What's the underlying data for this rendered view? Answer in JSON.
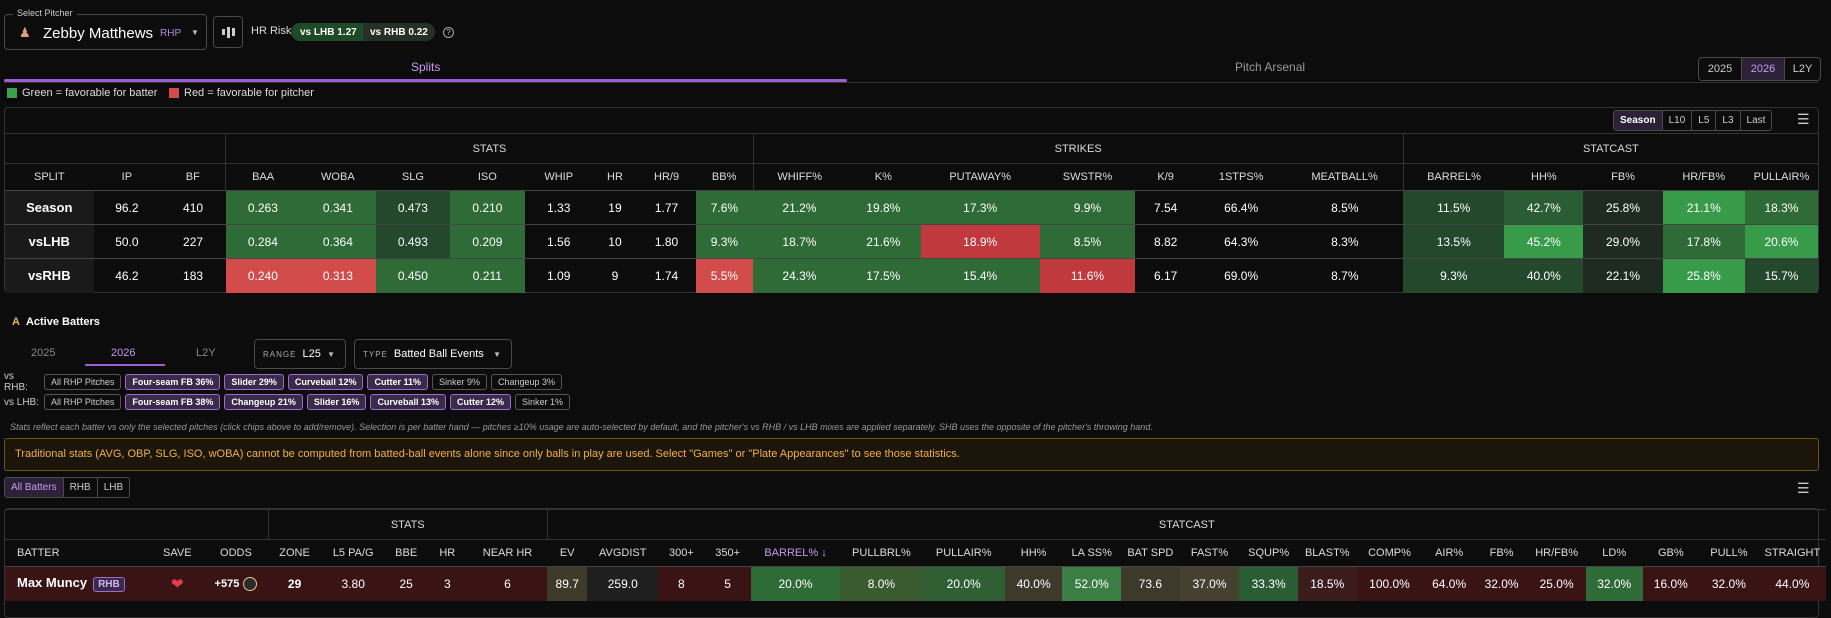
{
  "pitcher": {
    "select_label": "Select Pitcher",
    "name": "Zebby Matthews",
    "hand": "RHP"
  },
  "hr_risk": {
    "label": "HR Risk",
    "vs_lhb_label": "vs LHB",
    "vs_lhb_val": "1.27",
    "vs_rhb_label": "vs RHB",
    "vs_rhb_val": "0.22"
  },
  "tabs": {
    "splits": "Splits",
    "arsenal": "Pitch Arsenal"
  },
  "years": [
    "2025",
    "2026",
    "L2Y"
  ],
  "legend": {
    "green": "Green = favorable for batter",
    "red": "Red = favorable for pitcher"
  },
  "ranges": [
    "Season",
    "L10",
    "L5",
    "L3",
    "Last"
  ],
  "splits_table": {
    "groups": [
      "STATS",
      "STRIKES",
      "STATCAST"
    ],
    "headers": [
      "SPLIT",
      "IP",
      "BF",
      "BAA",
      "WOBA",
      "SLG",
      "ISO",
      "WHIP",
      "HR",
      "HR/9",
      "BB%",
      "WHIFF%",
      "K%",
      "PUTAWAY%",
      "SWSTR%",
      "K/9",
      "1STPS%",
      "MEATBALL%",
      "BARREL%",
      "HH%",
      "FB%",
      "HR/FB%",
      "PULLAIR%"
    ],
    "rows": [
      [
        "Season",
        "96.2",
        "410",
        "0.263",
        "0.341",
        "0.473",
        "0.210",
        "1.33",
        "19",
        "1.77",
        "7.6%",
        "21.2%",
        "19.8%",
        "17.3%",
        "9.9%",
        "7.54",
        "66.4%",
        "8.5%",
        "11.5%",
        "42.7%",
        "25.8%",
        "21.1%",
        "18.3%"
      ],
      [
        "vsLHB",
        "50.0",
        "227",
        "0.284",
        "0.364",
        "0.493",
        "0.209",
        "1.56",
        "10",
        "1.80",
        "9.3%",
        "18.7%",
        "21.6%",
        "18.9%",
        "8.5%",
        "8.82",
        "64.3%",
        "8.3%",
        "13.5%",
        "45.2%",
        "29.0%",
        "17.8%",
        "20.6%"
      ],
      [
        "vsRHB",
        "46.2",
        "183",
        "0.240",
        "0.313",
        "0.450",
        "0.211",
        "1.09",
        "9",
        "1.74",
        "5.5%",
        "24.3%",
        "17.5%",
        "15.4%",
        "11.6%",
        "6.17",
        "69.0%",
        "8.7%",
        "9.3%",
        "40.0%",
        "22.1%",
        "25.8%",
        "15.7%"
      ]
    ]
  },
  "active_batters": {
    "title": "Active Batters",
    "years": [
      "2025",
      "2026",
      "L2Y"
    ],
    "range_label": "RANGE",
    "range_value": "L25",
    "type_label": "TYPE",
    "type_value": "Batted Ball Events"
  },
  "vs_rhb": {
    "label": "vs RHB:",
    "chips": [
      "All RHP Pitches",
      "Four-seam FB 36%",
      "Slider 29%",
      "Curveball 12%",
      "Cutter 11%",
      "Sinker 9%",
      "Changeup 3%"
    ]
  },
  "vs_lhb": {
    "label": "vs LHB:",
    "chips": [
      "All RHP Pitches",
      "Four-seam FB 38%",
      "Changeup 21%",
      "Slider 16%",
      "Curveball 13%",
      "Cutter 12%",
      "Sinker 1%"
    ]
  },
  "note": "Stats reflect each batter vs only the selected pitches (click chips above to add/remove). Selection is per batter hand — pitches ≥10% usage are auto-selected by default, and the pitcher's vs RHB / vs LHB mixes are applied separately. SHB uses the opposite of the pitcher's throwing hand.",
  "warning": "Traditional stats (AVG, OBP, SLG, ISO, wOBA) cannot be computed from batted-ball events alone since only balls in play are used. Select \"Games\" or \"Plate Appearances\" to see those statistics.",
  "batter_filters": [
    "All Batters",
    "RHB",
    "LHB"
  ],
  "batter_table": {
    "groups": [
      "STATS",
      "STATCAST"
    ],
    "headers": [
      "BATTER",
      "SAVE",
      "ODDS",
      "ZONE",
      "L5 PA/G",
      "BBE",
      "HR",
      "NEAR HR",
      "EV",
      "AVGDIST",
      "300+",
      "350+",
      "BARREL% ↓",
      "PULLBRL%",
      "PULLAIR%",
      "HH%",
      "LA SS%",
      "BAT SPD",
      "FAST%",
      "SQUP%",
      "BLAST%",
      "COMP%",
      "AIR%",
      "FB%",
      "HR/FB%",
      "LD%",
      "GB%",
      "PULL%",
      "STRAIGHT"
    ],
    "rows": [
      [
        "Max Muncy",
        "",
        "+575",
        "29",
        "3.80",
        "25",
        "3",
        "6",
        "89.7",
        "259.0",
        "8",
        "5",
        "20.0%",
        "8.0%",
        "20.0%",
        "40.0%",
        "52.0%",
        "73.6",
        "37.0%",
        "33.3%",
        "18.5%",
        "100.0%",
        "64.0%",
        "32.0%",
        "25.0%",
        "32.0%",
        "16.0%",
        "32.0%",
        "44.0%"
      ]
    ],
    "batter_hand": "RHB"
  }
}
